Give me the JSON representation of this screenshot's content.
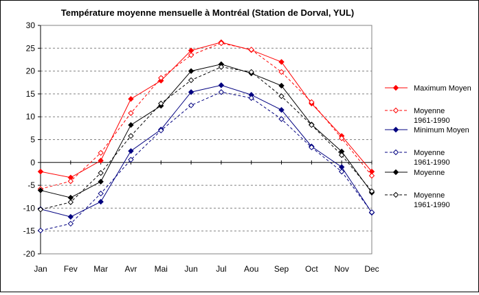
{
  "chart_data": {
    "type": "line",
    "title": "Température moyenne mensuelle à Montréal (Station de Dorval, YUL)",
    "xlabel": "",
    "ylabel": "",
    "categories": [
      "Jan",
      "Fev",
      "Mar",
      "Avr",
      "Mai",
      "Jun",
      "Jul",
      "Aou",
      "Sep",
      "Oct",
      "Nov",
      "Dec"
    ],
    "ylim": [
      -20,
      30
    ],
    "yticks": [
      "30",
      "25",
      "20",
      "15",
      "10",
      "5",
      "0",
      "-5",
      "-10",
      "-15",
      "-20"
    ],
    "grid": "horizontal dashed",
    "legend_position": "right",
    "series": [
      {
        "name": "Maximum Moyen",
        "color": "#ff0000",
        "line": "solid",
        "marker": "filled-diamond",
        "values": [
          -2.0,
          -3.3,
          0.4,
          13.9,
          17.9,
          24.5,
          26.3,
          24.6,
          22.0,
          12.9,
          5.8,
          -2.0
        ]
      },
      {
        "name": "Moyenne 1961-1990",
        "color": "#ff0000",
        "line": "dashed",
        "marker": "open-diamond",
        "values": [
          -5.8,
          -4.1,
          2.1,
          10.8,
          18.5,
          23.5,
          26.1,
          24.7,
          19.8,
          13.2,
          5.3,
          -2.9
        ]
      },
      {
        "name": "Minimum Moyen",
        "color": "#000080",
        "line": "solid",
        "marker": "filled-diamond",
        "values": [
          -10.2,
          -11.9,
          -8.6,
          2.5,
          7.2,
          15.4,
          16.9,
          14.8,
          11.5,
          3.5,
          -1.0,
          -11.0
        ]
      },
      {
        "name": "Moyenne 1961-1990",
        "color": "#000080",
        "line": "dashed",
        "marker": "open-diamond",
        "values": [
          -14.9,
          -13.4,
          -6.8,
          0.6,
          7.0,
          12.5,
          15.4,
          14.1,
          9.5,
          3.3,
          -2.0,
          -10.9
        ]
      },
      {
        "name": "Moyenne",
        "color": "#000000",
        "line": "solid",
        "marker": "filled-diamond",
        "values": [
          -6.1,
          -7.7,
          -4.2,
          8.2,
          12.4,
          20.0,
          21.5,
          19.5,
          16.8,
          8.3,
          2.4,
          -6.6
        ]
      },
      {
        "name": "Moyenne 1961-1990",
        "color": "#000000",
        "line": "dashed",
        "marker": "open-diamond",
        "values": [
          -10.3,
          -8.7,
          -2.3,
          5.8,
          12.9,
          18.0,
          20.9,
          19.8,
          14.5,
          8.2,
          1.6,
          -6.3
        ]
      }
    ]
  }
}
